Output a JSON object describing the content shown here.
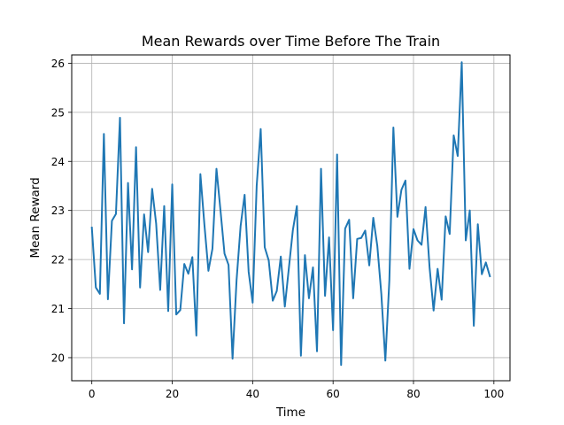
{
  "chart_data": {
    "type": "line",
    "title": "Mean Rewards over Time Before The Train",
    "xlabel": "Time",
    "ylabel": "Mean Reward",
    "xlim": [
      -5,
      104
    ],
    "ylim": [
      19.53,
      26.17
    ],
    "xticks": [
      0,
      20,
      40,
      60,
      80,
      100
    ],
    "yticks": [
      20,
      21,
      22,
      23,
      24,
      25,
      26
    ],
    "grid": true,
    "colors": {
      "line": "#1f77b4",
      "grid": "#b0b0b0",
      "axes": "#000000"
    },
    "series": [
      {
        "x": [
          0,
          1,
          2,
          3,
          4,
          5,
          6,
          7,
          8,
          9,
          10,
          11,
          12,
          13,
          14,
          15,
          16,
          17,
          18,
          19,
          20,
          21,
          22,
          23,
          24,
          25,
          26,
          27,
          28,
          29,
          30,
          31,
          32,
          33,
          34,
          35,
          36,
          37,
          38,
          39,
          40,
          41,
          42,
          43,
          44,
          45,
          46,
          47,
          48,
          49,
          50,
          51,
          52,
          53,
          54,
          55,
          56,
          57,
          58,
          59,
          60,
          61,
          62,
          63,
          64,
          65,
          66,
          67,
          68,
          69,
          70,
          71,
          72,
          73,
          74,
          75,
          76,
          77,
          78,
          79,
          80,
          81,
          82,
          83,
          84,
          85,
          86,
          87,
          88,
          89,
          90,
          91,
          92,
          93,
          94,
          95,
          96,
          97,
          98,
          99
        ],
        "y": [
          22.65,
          21.43,
          21.3,
          24.56,
          21.19,
          22.79,
          22.93,
          24.89,
          20.7,
          23.56,
          21.8,
          24.29,
          21.43,
          22.92,
          22.15,
          23.44,
          22.73,
          21.38,
          23.09,
          20.95,
          23.53,
          20.88,
          20.97,
          21.91,
          21.71,
          22.05,
          20.45,
          23.74,
          22.71,
          21.77,
          22.22,
          23.85,
          23.0,
          22.12,
          21.89,
          19.98,
          21.58,
          22.68,
          23.32,
          21.75,
          21.12,
          23.5,
          24.66,
          22.25,
          21.98,
          21.16,
          21.36,
          22.06,
          21.04,
          21.82,
          22.6,
          23.09,
          20.04,
          22.09,
          21.21,
          21.84,
          20.13,
          23.85,
          21.26,
          22.45,
          20.56,
          24.14,
          19.85,
          22.63,
          22.81,
          21.21,
          22.42,
          22.44,
          22.59,
          21.88,
          22.85,
          22.28,
          21.3,
          19.94,
          21.58,
          24.69,
          22.87,
          23.42,
          23.61,
          21.81,
          22.62,
          22.39,
          22.3,
          23.07,
          21.84,
          20.96,
          21.81,
          21.18,
          22.88,
          22.52,
          24.53,
          24.11,
          26.02,
          22.39,
          23.0,
          20.65,
          22.72,
          21.7,
          21.94,
          21.66
        ]
      }
    ]
  }
}
